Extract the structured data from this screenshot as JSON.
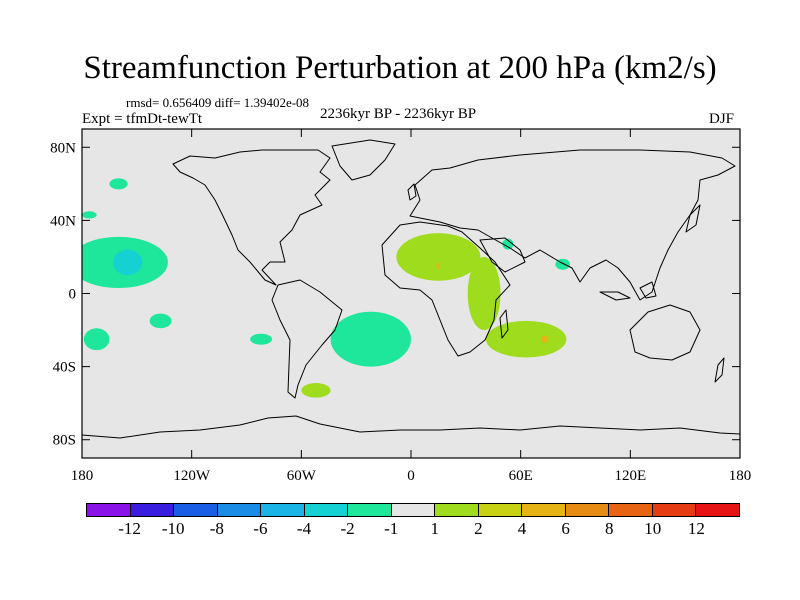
{
  "title": "Streamfunction Perturbation at 200 hPa (km2/s)",
  "stats": "rmsd= 0.656409 diff= 1.39402e-08",
  "experiment": "Expt = tfmDt-tewTt",
  "period": "2236kyr BP - 2236kyr BP",
  "season": "DJF",
  "axes": {
    "y_ticks": [
      {
        "value": 80,
        "label": "80N"
      },
      {
        "value": 40,
        "label": "40N"
      },
      {
        "value": 0,
        "label": "0"
      },
      {
        "value": -40,
        "label": "40S"
      },
      {
        "value": -80,
        "label": "80S"
      }
    ],
    "x_ticks": [
      {
        "value": -180,
        "label": "180"
      },
      {
        "value": -120,
        "label": "120W"
      },
      {
        "value": -60,
        "label": "60W"
      },
      {
        "value": 0,
        "label": "0"
      },
      {
        "value": 60,
        "label": "60E"
      },
      {
        "value": 120,
        "label": "120E"
      },
      {
        "value": 180,
        "label": "180"
      }
    ]
  },
  "colorbar": {
    "colors": [
      "#8a14e6",
      "#3a1ee0",
      "#1a5ee6",
      "#1a8ce6",
      "#1ab4e6",
      "#14d2d2",
      "#1ee69a",
      "#e6e6e6",
      "#a0dc1e",
      "#c8d214",
      "#e6b414",
      "#e68c14",
      "#e66414",
      "#e63c14",
      "#e61414"
    ],
    "labels": [
      "-12",
      "-10",
      "-8",
      "-6",
      "-4",
      "-2",
      "-1",
      "1",
      "2",
      "4",
      "6",
      "8",
      "10",
      "12"
    ]
  },
  "colors": {
    "background": "#e6e6e6",
    "coastline": "#000000",
    "neg_weak": "#1ee69a",
    "neg_mid": "#14d2d2",
    "pos_weak": "#a0dc1e",
    "pos_mid": "#e6b414"
  },
  "anomalies": [
    {
      "name": "north-pacific-negative",
      "level": -2,
      "lon": -160,
      "lat": 17,
      "rlon": 27,
      "rlat": 14
    },
    {
      "name": "north-pacific-negative-core",
      "level": -4,
      "lon": -155,
      "lat": 17,
      "rlon": 8,
      "rlat": 7
    },
    {
      "name": "alaska-negative",
      "level": -2,
      "lon": -160,
      "lat": 60,
      "rlon": 5,
      "rlat": 3
    },
    {
      "name": "pacific-small-negative",
      "level": -2,
      "lon": -176,
      "lat": 43,
      "rlon": 4,
      "rlat": 2
    },
    {
      "name": "south-pacific-negative-west",
      "level": -2,
      "lon": -172,
      "lat": -25,
      "rlon": 7,
      "rlat": 6
    },
    {
      "name": "south-pacific-negative-central",
      "level": -2,
      "lon": -137,
      "lat": -15,
      "rlon": 6,
      "rlat": 4
    },
    {
      "name": "south-america-west-negative",
      "level": -2,
      "lon": -82,
      "lat": -25,
      "rlon": 6,
      "rlat": 3
    },
    {
      "name": "south-atlantic-negative",
      "level": -2,
      "lon": -22,
      "lat": -25,
      "rlon": 22,
      "rlat": 15
    },
    {
      "name": "southwest-atlantic-positive",
      "level": 1,
      "lon": -52,
      "lat": -53,
      "rlon": 8,
      "rlat": 4
    },
    {
      "name": "north-africa-positive",
      "level": 1,
      "lon": 15,
      "lat": 20,
      "rlon": 23,
      "rlat": 13
    },
    {
      "name": "east-africa-positive",
      "level": 1,
      "lon": 40,
      "lat": 0,
      "rlon": 9,
      "rlat": 20
    },
    {
      "name": "indian-ocean-positive",
      "level": 1,
      "lon": 63,
      "lat": -25,
      "rlon": 22,
      "rlat": 10
    },
    {
      "name": "sahara-positive-core",
      "level": 2,
      "lon": 15,
      "lat": 15,
      "rlon": 1,
      "rlat": 2
    },
    {
      "name": "indian-ocean-positive-core",
      "level": 2,
      "lon": 73,
      "lat": -25,
      "rlon": 2,
      "rlat": 2
    },
    {
      "name": "arabia-negative",
      "level": -2,
      "lon": 53,
      "lat": 27,
      "rlon": 3,
      "rlat": 3
    },
    {
      "name": "india-negative",
      "level": -2,
      "lon": 83,
      "lat": 16,
      "rlon": 4,
      "rlat": 3
    }
  ]
}
